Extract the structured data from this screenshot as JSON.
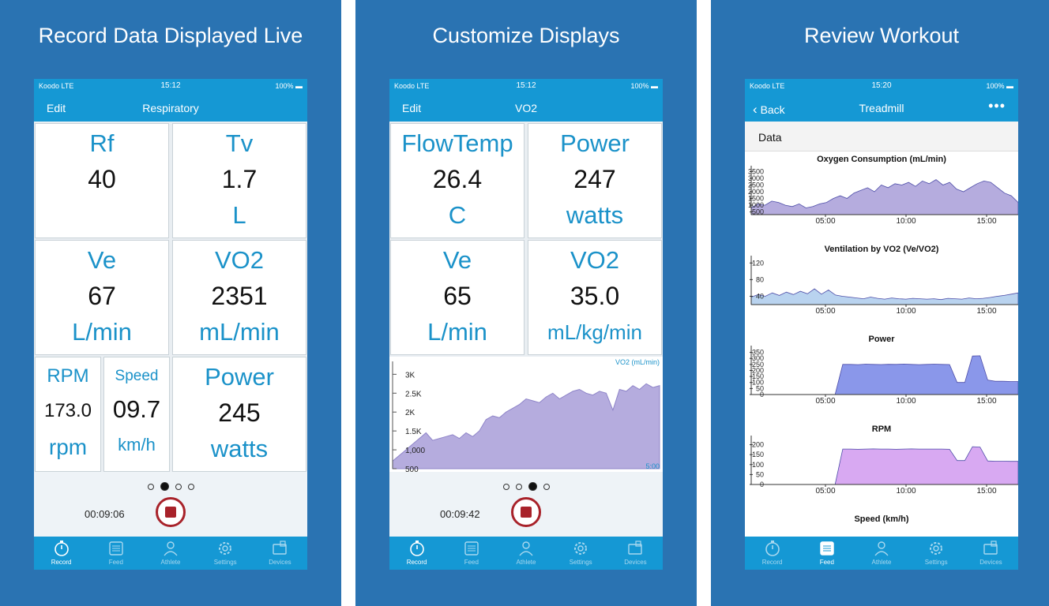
{
  "colors": {
    "panel_bg": "#2a73b2",
    "ios_blue": "#1598d4",
    "accent_text": "#1b92c9",
    "stop_red": "#a8222a"
  },
  "tabs": [
    {
      "label": "Record",
      "icon": "stopwatch-icon"
    },
    {
      "label": "Feed",
      "icon": "feed-icon"
    },
    {
      "label": "Athlete",
      "icon": "person-icon"
    },
    {
      "label": "Settings",
      "icon": "gear-icon"
    },
    {
      "label": "Devices",
      "icon": "devices-icon"
    }
  ],
  "panel1": {
    "title": "Record Data Displayed Live",
    "status": {
      "carrier": "Koodo  LTE",
      "time": "15:12",
      "battery": "100%"
    },
    "nav": {
      "left": "Edit",
      "title": "Respiratory"
    },
    "tiles": [
      {
        "label": "Rf",
        "value": "40",
        "unit": ""
      },
      {
        "label": "Tv",
        "value": "1.7",
        "unit": "L"
      },
      {
        "label": "Ve",
        "value": "67",
        "unit": "L/min"
      },
      {
        "label": "VO2",
        "value": "2351",
        "unit": "mL/min"
      },
      {
        "label": "RPM",
        "value": "173.0",
        "unit": "rpm"
      },
      {
        "label": "Speed",
        "value": "09.7",
        "unit": "km/h"
      },
      {
        "label": "Power",
        "value": "245",
        "unit": "watts"
      }
    ],
    "timer": "00:09:06",
    "active_page": 1
  },
  "panel2": {
    "title": "Customize Displays",
    "status": {
      "carrier": "Koodo  LTE",
      "time": "15:12",
      "battery": "100%"
    },
    "nav": {
      "left": "Edit",
      "title": "VO2"
    },
    "tiles": [
      {
        "label": "FlowTemp",
        "value": "26.4",
        "unit": "C"
      },
      {
        "label": "Power",
        "value": "247",
        "unit": "watts"
      },
      {
        "label": "Ve",
        "value": "65",
        "unit": "L/min"
      },
      {
        "label": "VO2",
        "value": "35.0",
        "unit": "mL/kg/min"
      }
    ],
    "timer": "00:09:42",
    "active_page": 2
  },
  "panel3": {
    "title": "Review Workout",
    "status": {
      "carrier": "Koodo  LTE",
      "time": "15:20",
      "battery": "100%"
    },
    "nav": {
      "left": "Back",
      "title": "Treadmill",
      "right": "•••"
    },
    "section_label": "Data",
    "last_chart_title": "Speed (km/h)"
  },
  "chart_data": [
    {
      "type": "area",
      "title": "VO2  (mL/min)",
      "x_end_label": "5:00",
      "y_ticks": [
        "3K",
        "2.5K",
        "2K",
        "1.5K",
        "1,000",
        "500"
      ],
      "ylim": [
        500,
        3300
      ],
      "color": "#b5acde",
      "values": [
        700,
        850,
        1000,
        1150,
        1300,
        1450,
        1250,
        1300,
        1350,
        1400,
        1300,
        1450,
        1350,
        1500,
        1800,
        1900,
        1850,
        2000,
        2100,
        2200,
        2350,
        2300,
        2250,
        2400,
        2500,
        2350,
        2450,
        2550,
        2600,
        2500,
        2450,
        2550,
        2500,
        2050,
        2600,
        2550,
        2700,
        2600,
        2750,
        2650,
        2700
      ]
    },
    {
      "type": "area",
      "title": "Oxygen Consumption (mL/min)",
      "y_ticks": [
        "3500",
        "3000",
        "2500",
        "2000",
        "1500",
        "1000",
        "500"
      ],
      "ylim": [
        300,
        3700
      ],
      "x_ticks": [
        "05:00",
        "10:00",
        "15:00"
      ],
      "color": "#b5acde",
      "values": [
        800,
        1100,
        1000,
        1300,
        1200,
        1000,
        900,
        1100,
        800,
        900,
        1100,
        1200,
        1500,
        1700,
        1500,
        1900,
        2100,
        2300,
        2000,
        2500,
        2300,
        2600,
        2500,
        2700,
        2400,
        2800,
        2600,
        2900,
        2500,
        2700,
        2200,
        2000,
        2300,
        2600,
        2800,
        2700,
        2300,
        1900,
        1700,
        1200
      ]
    },
    {
      "type": "area",
      "title": "Ventilation by VO2  (Ve/VO2)",
      "y_ticks": [
        "120",
        "80",
        "40"
      ],
      "ylim": [
        20,
        130
      ],
      "x_ticks": [
        "05:00",
        "10:00",
        "15:00"
      ],
      "color": "#b9d3ef",
      "values": [
        38,
        44,
        40,
        48,
        42,
        50,
        44,
        52,
        46,
        58,
        45,
        55,
        43,
        40,
        38,
        36,
        34,
        38,
        35,
        33,
        36,
        34,
        33,
        35,
        34,
        33,
        34,
        32,
        35,
        34,
        33,
        36,
        34,
        35,
        37,
        40,
        42,
        45,
        48
      ]
    },
    {
      "type": "area",
      "title": "Power",
      "y_ticks": [
        "350",
        "300",
        "250",
        "200",
        "150",
        "100",
        "50",
        "0"
      ],
      "ylim": [
        0,
        380
      ],
      "x_ticks": [
        "05:00",
        "10:00",
        "15:00"
      ],
      "color": "#8a97ea",
      "values": [
        0,
        0,
        0,
        0,
        0,
        0,
        0,
        0,
        0,
        0,
        0,
        0,
        250,
        250,
        248,
        252,
        250,
        249,
        251,
        250,
        253,
        250,
        248,
        250,
        252,
        250,
        249,
        100,
        100,
        320,
        322,
        120,
        110,
        110,
        108,
        108
      ]
    },
    {
      "type": "area",
      "title": "RPM",
      "y_ticks": [
        "200",
        "150",
        "100",
        "50",
        "0"
      ],
      "ylim": [
        0,
        230
      ],
      "x_ticks": [
        "05:00",
        "10:00",
        "15:00"
      ],
      "color": "#d8a9f2",
      "values": [
        0,
        0,
        0,
        0,
        0,
        0,
        0,
        0,
        0,
        0,
        0,
        0,
        178,
        178,
        177,
        178,
        179,
        178,
        178,
        177,
        178,
        179,
        178,
        178,
        178,
        178,
        177,
        120,
        120,
        190,
        188,
        118,
        117,
        117,
        116,
        116
      ]
    }
  ]
}
